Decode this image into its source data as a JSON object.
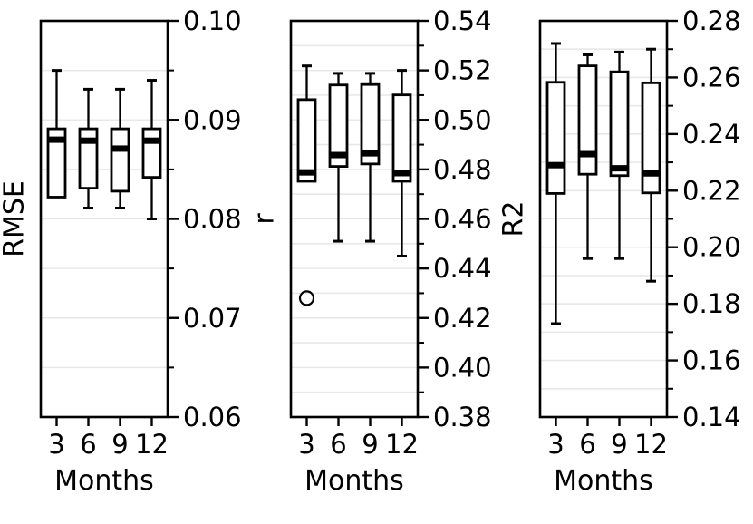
{
  "figure": {
    "background_color": "#ffffff",
    "ink_color": "#000000",
    "grid_color": "#e8e8e8"
  },
  "chart_data": [
    {
      "type": "box",
      "title": "",
      "ylabel": "RMSE",
      "xlabel": "Months",
      "categories": [
        "3",
        "6",
        "9",
        "12"
      ],
      "ylim": [
        0.06,
        0.1
      ],
      "ytick_values": [
        0.06,
        0.07,
        0.08,
        0.09,
        0.1
      ],
      "ytick_labels": [
        "0.06",
        "0.07",
        "0.08",
        "0.09",
        "0.10"
      ],
      "ytick_minor_values": [
        0.065,
        0.075,
        0.085,
        0.095
      ],
      "grid": "horizontal, major+minor",
      "legend": "none",
      "boxes": [
        {
          "category": "3",
          "whislo": 0.0822,
          "q1": 0.0822,
          "med": 0.088,
          "q3": 0.0891,
          "whishi": 0.095,
          "outliers": []
        },
        {
          "category": "6",
          "whislo": 0.0811,
          "q1": 0.0831,
          "med": 0.0879,
          "q3": 0.0891,
          "whishi": 0.0931,
          "outliers": []
        },
        {
          "category": "9",
          "whislo": 0.0811,
          "q1": 0.0828,
          "med": 0.0871,
          "q3": 0.0891,
          "whishi": 0.0931,
          "outliers": []
        },
        {
          "category": "12",
          "whislo": 0.08,
          "q1": 0.0842,
          "med": 0.0879,
          "q3": 0.0891,
          "whishi": 0.094,
          "outliers": []
        }
      ]
    },
    {
      "type": "box",
      "title": "",
      "ylabel": "r",
      "xlabel": "Months",
      "categories": [
        "3",
        "6",
        "9",
        "12"
      ],
      "ylim": [
        0.38,
        0.54
      ],
      "ytick_values": [
        0.38,
        0.4,
        0.42,
        0.44,
        0.46,
        0.48,
        0.5,
        0.52,
        0.54
      ],
      "ytick_labels": [
        "0.38",
        "0.40",
        "0.42",
        "0.44",
        "0.46",
        "0.48",
        "0.50",
        "0.52",
        "0.54"
      ],
      "ytick_minor_values": [
        0.39,
        0.41,
        0.43,
        0.45,
        0.47,
        0.49,
        0.51,
        0.53
      ],
      "grid": "horizontal, major+minor",
      "legend": "none",
      "boxes": [
        {
          "category": "3",
          "whislo": 0.4752,
          "q1": 0.4752,
          "med": 0.4788,
          "q3": 0.5082,
          "whishi": 0.5218,
          "outliers": [
            0.428
          ]
        },
        {
          "category": "6",
          "whislo": 0.451,
          "q1": 0.4812,
          "med": 0.4858,
          "q3": 0.5141,
          "whishi": 0.5188,
          "outliers": []
        },
        {
          "category": "9",
          "whislo": 0.451,
          "q1": 0.4822,
          "med": 0.4865,
          "q3": 0.5143,
          "whishi": 0.5188,
          "outliers": []
        },
        {
          "category": "12",
          "whislo": 0.445,
          "q1": 0.4752,
          "med": 0.4785,
          "q3": 0.5101,
          "whishi": 0.52,
          "outliers": []
        }
      ]
    },
    {
      "type": "box",
      "title": "",
      "ylabel": "R2",
      "xlabel": "Months",
      "categories": [
        "3",
        "6",
        "9",
        "12"
      ],
      "ylim": [
        0.14,
        0.28
      ],
      "ytick_values": [
        0.14,
        0.16,
        0.18,
        0.2,
        0.22,
        0.24,
        0.26,
        0.28
      ],
      "ytick_labels": [
        "0.14",
        "0.16",
        "0.18",
        "0.20",
        "0.22",
        "0.24",
        "0.26",
        "0.28"
      ],
      "ytick_minor_values": [
        0.15,
        0.17,
        0.19,
        0.21,
        0.23,
        0.25,
        0.27
      ],
      "grid": "horizontal, major+minor",
      "legend": "none",
      "boxes": [
        {
          "category": "3",
          "whislo": 0.173,
          "q1": 0.219,
          "med": 0.229,
          "q3": 0.2583,
          "whishi": 0.272,
          "outliers": []
        },
        {
          "category": "6",
          "whislo": 0.196,
          "q1": 0.2258,
          "med": 0.2329,
          "q3": 0.2641,
          "whishi": 0.268,
          "outliers": []
        },
        {
          "category": "9",
          "whislo": 0.196,
          "q1": 0.2253,
          "med": 0.2279,
          "q3": 0.262,
          "whishi": 0.269,
          "outliers": []
        },
        {
          "category": "12",
          "whislo": 0.188,
          "q1": 0.2192,
          "med": 0.2261,
          "q3": 0.2581,
          "whishi": 0.27,
          "outliers": []
        }
      ]
    }
  ]
}
